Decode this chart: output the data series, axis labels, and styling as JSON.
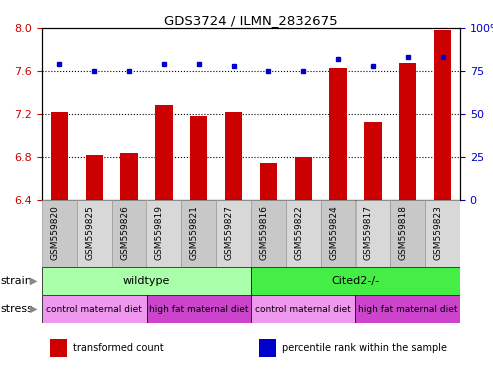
{
  "title": "GDS3724 / ILMN_2832675",
  "samples": [
    "GSM559820",
    "GSM559825",
    "GSM559826",
    "GSM559819",
    "GSM559821",
    "GSM559827",
    "GSM559816",
    "GSM559822",
    "GSM559824",
    "GSM559817",
    "GSM559818",
    "GSM559823"
  ],
  "bar_values": [
    7.22,
    6.82,
    6.84,
    7.28,
    7.18,
    7.22,
    6.74,
    6.8,
    7.63,
    7.13,
    7.67,
    7.98
  ],
  "dot_values": [
    79,
    75,
    75,
    79,
    79,
    78,
    75,
    75,
    82,
    78,
    83,
    83
  ],
  "ylim_left": [
    6.4,
    8.0
  ],
  "ylim_right": [
    0,
    100
  ],
  "yticks_left": [
    6.4,
    6.8,
    7.2,
    7.6,
    8.0
  ],
  "yticks_right": [
    0,
    25,
    50,
    75,
    100
  ],
  "bar_color": "#cc0000",
  "dot_color": "#0000cc",
  "bar_bottom": 6.4,
  "strain_groups": [
    {
      "label": "wildtype",
      "start": 0,
      "end": 6,
      "color": "#aaffaa"
    },
    {
      "label": "Cited2-/-",
      "start": 6,
      "end": 12,
      "color": "#44ee44"
    }
  ],
  "stress_groups": [
    {
      "label": "control maternal diet",
      "start": 0,
      "end": 3,
      "color": "#ee99ee"
    },
    {
      "label": "high fat maternal diet",
      "start": 3,
      "end": 6,
      "color": "#cc44cc"
    },
    {
      "label": "control maternal diet",
      "start": 6,
      "end": 9,
      "color": "#ee99ee"
    },
    {
      "label": "high fat maternal diet",
      "start": 9,
      "end": 12,
      "color": "#cc44cc"
    }
  ],
  "legend_items": [
    {
      "label": "transformed count",
      "color": "#cc0000",
      "marker": "s"
    },
    {
      "label": "percentile rank within the sample",
      "color": "#0000cc",
      "marker": "s"
    }
  ],
  "label_alternating_colors": [
    "#c8c8c8",
    "#d8d8d8"
  ],
  "grid_yticks": [
    6.8,
    7.2,
    7.6
  ],
  "grid_color": "#000000"
}
